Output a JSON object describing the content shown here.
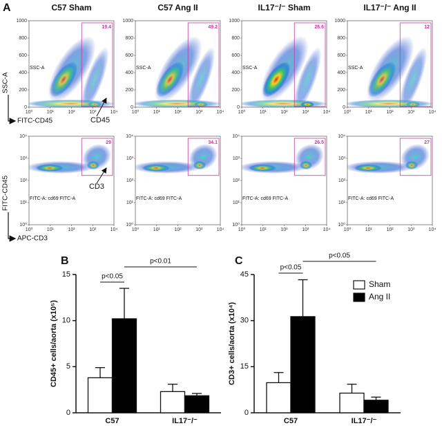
{
  "panel_a": {
    "label": "A",
    "columns": [
      "C57 Sham",
      "C57 Ang II",
      "IL17⁻/⁻ Sham",
      "IL17⁻/⁻ Ang II"
    ],
    "scatter": {
      "y_title": "SSC-A",
      "x_title": "FITC-CD45",
      "plot_label": "SSC-A",
      "marker": "CD45",
      "gates": [
        19.4,
        49.2,
        26.6,
        12
      ],
      "yticks": [
        0,
        200,
        400,
        600,
        800,
        1000
      ],
      "xticks": [
        {
          "value": 0,
          "label": "10⁰"
        },
        {
          "value": 1,
          "label": "10¹"
        },
        {
          "value": 2,
          "label": "10²"
        },
        {
          "value": 3,
          "label": "10³"
        },
        {
          "value": 4,
          "label": "10⁴"
        }
      ]
    },
    "cd3": {
      "y_title": "FITC-CD45",
      "x_title": "APC-CD3",
      "plot_label": "FITC-A: cd69 FITC-A",
      "marker": "CD3",
      "gates": [
        29,
        34.1,
        26.5,
        27
      ],
      "yticks": [
        {
          "value": 0,
          "label": "10⁰"
        },
        {
          "value": 1,
          "label": "10¹"
        },
        {
          "value": 2,
          "label": "10²"
        },
        {
          "value": 3,
          "label": "10³"
        },
        {
          "value": 4,
          "label": "10⁴"
        }
      ],
      "xticks": [
        {
          "value": 0,
          "label": "10⁰"
        },
        {
          "value": 1,
          "label": "10¹"
        },
        {
          "value": 2,
          "label": "10²"
        },
        {
          "value": 3,
          "label": "10³"
        },
        {
          "value": 4,
          "label": "10⁴"
        }
      ]
    }
  },
  "chart_data": [
    {
      "type": "bar",
      "panel": "B",
      "y_label": "CD45+ cells/aorta (x10⁵)",
      "categories": [
        "C57",
        "IL17⁻/⁻"
      ],
      "series": [
        {
          "color": "#ffffff",
          "values": [
            3.8,
            2.3
          ],
          "errors": [
            1.1,
            0.8
          ]
        },
        {
          "color": "#000000",
          "values": [
            10.2,
            1.85
          ],
          "errors": [
            3.3,
            0.25
          ]
        }
      ],
      "ylim": [
        0,
        15
      ],
      "yticks": [
        0,
        5,
        10,
        15
      ],
      "annotations": [
        "p<0.05",
        "p<0.01"
      ],
      "legend": false
    },
    {
      "type": "bar",
      "panel": "C",
      "y_label": "CD3+ cells/aorta (x10⁴)",
      "categories": [
        "C57",
        "IL17⁻/⁻"
      ],
      "series": [
        {
          "name": "Sham",
          "color": "#ffffff",
          "values": [
            9.8,
            6.4
          ],
          "errors": [
            3.3,
            2.9
          ]
        },
        {
          "name": "Ang II",
          "color": "#000000",
          "values": [
            31.3,
            4.1
          ],
          "errors": [
            12,
            1.0
          ]
        }
      ],
      "ylim": [
        0,
        45
      ],
      "yticks": [
        0,
        15,
        30,
        45
      ],
      "annotations": [
        "p<0.05",
        "p<0.05"
      ],
      "legend": "upper right"
    }
  ]
}
